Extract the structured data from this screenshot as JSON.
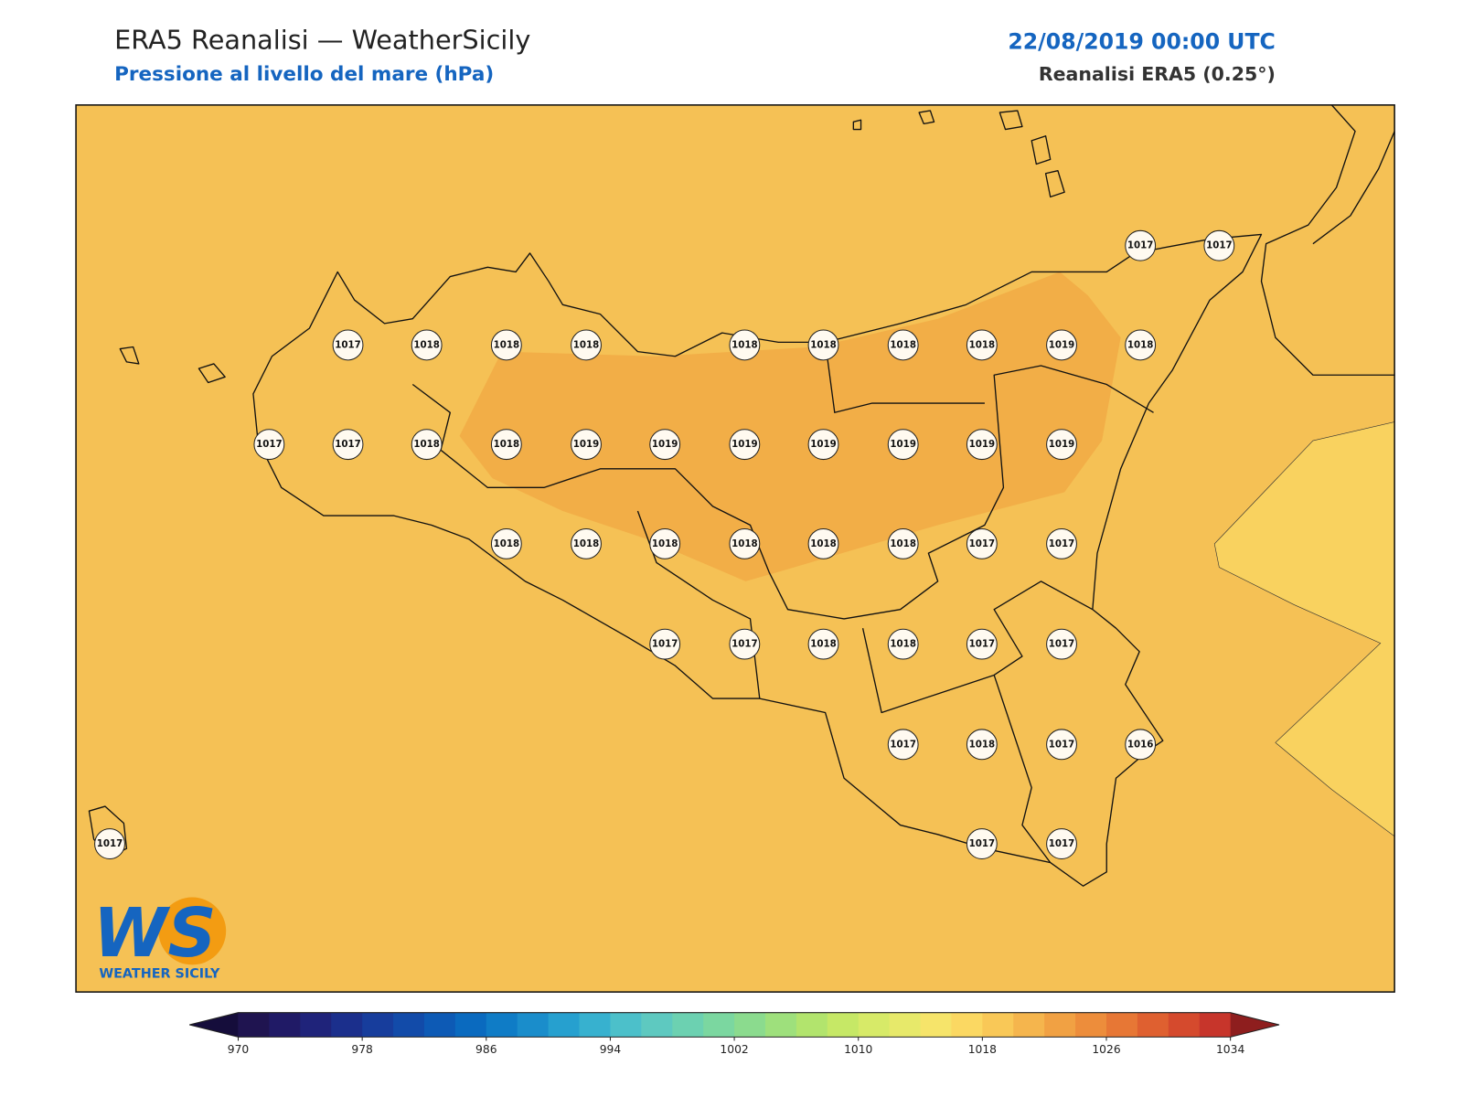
{
  "header": {
    "title": "ERA5 Reanalisi — WeatherSicily",
    "subtitle": "Pressione al livello del mare (hPa)",
    "datetime": "22/08/2019 00:00 UTC",
    "source": "Reanalisi ERA5 (0.25°)"
  },
  "stations": [
    1017,
    1017,
    1017,
    1018,
    1018,
    1018,
    1018,
    1018,
    1018,
    1018,
    1019,
    1018,
    1017,
    1017,
    1018,
    1018,
    1019,
    1019,
    1019,
    1019,
    1019,
    1019,
    1019,
    1018,
    1018,
    1018,
    1018,
    1018,
    1018,
    1017,
    1017,
    1017,
    1017,
    1018,
    1018,
    1017,
    1017,
    1017,
    1018,
    1017,
    1016,
    1017,
    1017,
    1017
  ],
  "logo": {
    "text": "WS",
    "subtitle": "WEATHER SICILY"
  },
  "colorbar": {
    "lim": [
      970,
      1034
    ],
    "ticks": [
      970,
      978,
      986,
      994,
      1002,
      1010,
      1018,
      1026,
      1034
    ],
    "under": "#150d3b",
    "over": "#8e1e1e",
    "colors": [
      "#1f1450",
      "#201a66",
      "#1f237a",
      "#1b2f8c",
      "#173d9c",
      "#124ba9",
      "#0d5ab5",
      "#0a6abf",
      "#0f7cc6",
      "#1a8dcb",
      "#26a0cf",
      "#37b1cf",
      "#4cc0ca",
      "#5ec9c0",
      "#6cd1b1",
      "#7bd7a0",
      "#8bdb8e",
      "#9ee07c",
      "#b2e46d",
      "#c6e866",
      "#d7ea68",
      "#e7e96a",
      "#f6e46a",
      "#fbd862",
      "#f9c857",
      "#f5b54d",
      "#f1a143",
      "#ed8d3b",
      "#e77735",
      "#df6030",
      "#d54a2d",
      "#c7352b"
    ]
  }
}
